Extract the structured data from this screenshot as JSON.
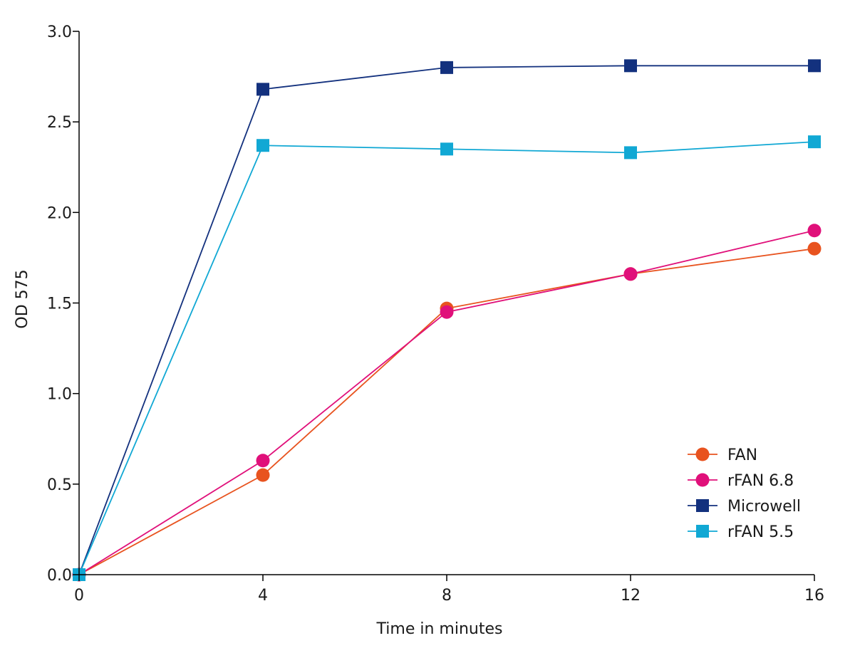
{
  "chart_data": {
    "type": "line",
    "title": "",
    "xlabel": "Time in minutes",
    "ylabel": "OD 575",
    "xlim": [
      0,
      16
    ],
    "ylim": [
      0,
      3.0
    ],
    "x_ticks": [
      "0",
      "4",
      "8",
      "12",
      "16"
    ],
    "y_ticks": [
      "0.0",
      "0.5",
      "1.0",
      "1.5",
      "2.0",
      "2.5",
      "3.0"
    ],
    "x_tick_values": [
      0,
      4,
      8,
      12,
      16
    ],
    "y_tick_values": [
      0,
      0.5,
      1.0,
      1.5,
      2.0,
      2.5,
      3.0
    ],
    "grid": false,
    "legend_position": "bottom-right",
    "series": [
      {
        "name": "FAN",
        "color": "#E8531F",
        "marker": "circle",
        "x": [
          0,
          4,
          8,
          12,
          16
        ],
        "y": [
          0.0,
          0.55,
          1.47,
          1.66,
          1.8
        ]
      },
      {
        "name": "rFAN 6.8",
        "color": "#E0107A",
        "marker": "circle",
        "x": [
          0,
          4,
          8,
          12,
          16
        ],
        "y": [
          0.0,
          0.63,
          1.45,
          1.66,
          1.9
        ]
      },
      {
        "name": "Microwell",
        "color": "#13317E",
        "marker": "square",
        "x": [
          0,
          4,
          8,
          12,
          16
        ],
        "y": [
          0.0,
          2.68,
          2.8,
          2.81,
          2.81
        ]
      },
      {
        "name": "rFAN 5.5",
        "color": "#11A8D4",
        "marker": "square",
        "x": [
          0,
          4,
          8,
          12,
          16
        ],
        "y": [
          0.0,
          2.37,
          2.35,
          2.33,
          2.39
        ]
      }
    ]
  }
}
